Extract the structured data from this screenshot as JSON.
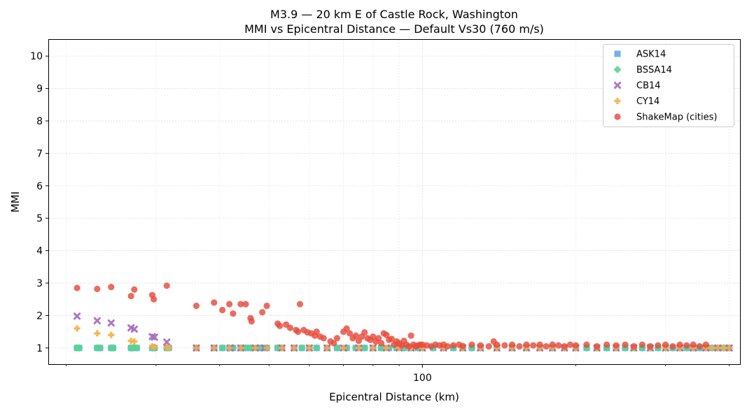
{
  "chart_data": {
    "type": "scatter",
    "title": "M3.9 — 20 km E of Castle Rock, Washington",
    "subtitle": "MMI vs Epicentral Distance — Default Vs30 (760 m/s)",
    "xlabel": "Epicentral Distance (km)",
    "ylabel": "MMI",
    "xscale": "log",
    "xlim": [
      18.5,
      420
    ],
    "ylim": [
      0.5,
      10.5
    ],
    "xticks": [
      100
    ],
    "xtick_labels": [
      "100"
    ],
    "yticks": [
      1,
      2,
      3,
      4,
      5,
      6,
      7,
      8,
      9,
      10
    ],
    "ytick_labels": [
      "1",
      "2",
      "3",
      "4",
      "5",
      "6",
      "7",
      "8",
      "9",
      "10"
    ],
    "grid": true,
    "legend_position": "top-right",
    "series": [
      {
        "name": "ASK14",
        "marker": "square",
        "color": "#5DADE2",
        "x": [
          21,
          21.2,
          23,
          23.3,
          24.5,
          24.7,
          26.8,
          27,
          27.5,
          29.5,
          29.8,
          31.5,
          31.8,
          36,
          39,
          40.5,
          41.8,
          42.5,
          44,
          45,
          46,
          47.5,
          48.5,
          49.5,
          52,
          53,
          56,
          58,
          60,
          62,
          65,
          68,
          71,
          74,
          77,
          80,
          83,
          86,
          89,
          92,
          95,
          98,
          100,
          105,
          110,
          115,
          120,
          125,
          130,
          140,
          150,
          160,
          170,
          180,
          190,
          200,
          210,
          220,
          230,
          240,
          250,
          260,
          270,
          280,
          290,
          300,
          310,
          320,
          330,
          340,
          350,
          360,
          370,
          380,
          390,
          400
        ],
        "y": [
          1,
          1,
          1,
          1,
          1,
          1,
          1,
          1,
          1,
          1,
          1,
          1,
          1,
          1,
          1,
          1,
          1,
          1,
          1,
          1,
          1,
          1,
          1,
          1,
          1,
          1,
          1,
          1,
          1,
          1,
          1,
          1,
          1,
          1,
          1,
          1,
          1,
          1,
          1,
          1,
          1,
          1,
          1,
          1,
          1,
          1,
          1,
          1,
          1,
          1,
          1,
          1,
          1,
          1,
          1,
          1,
          1,
          1,
          1,
          1,
          1,
          1,
          1,
          1,
          1,
          1,
          1,
          1,
          1,
          1,
          1,
          1,
          1,
          1,
          1,
          1
        ]
      },
      {
        "name": "BSSA14",
        "marker": "diamond",
        "color": "#58D68D",
        "x": [
          21,
          21.2,
          23,
          23.3,
          24.5,
          24.7,
          26.8,
          27,
          27.5,
          29.5,
          29.8,
          31.5,
          31.8,
          36,
          39,
          40.5,
          41.8,
          42.5,
          44,
          45,
          46,
          47.5,
          48.5,
          49.5,
          52,
          53,
          56,
          58,
          60,
          62,
          65,
          68,
          71,
          74,
          77,
          80,
          83,
          86,
          89,
          92,
          95,
          98,
          100,
          105,
          110,
          115,
          120,
          125,
          130,
          140,
          150,
          160,
          170,
          180,
          190,
          200,
          210,
          220,
          230,
          240,
          250,
          260,
          270,
          280,
          290,
          300,
          310,
          320,
          330,
          340,
          350,
          360,
          370,
          380,
          390,
          400
        ],
        "y": [
          1,
          1,
          1,
          1,
          1,
          1,
          1,
          1,
          1,
          1,
          1,
          1,
          1,
          1,
          1,
          1,
          1,
          1,
          1,
          1,
          1,
          1,
          1,
          1,
          1,
          1,
          1,
          1,
          1,
          1,
          1,
          1,
          1,
          1,
          1,
          1,
          1,
          1,
          1,
          1,
          1,
          1,
          1,
          1,
          1,
          1,
          1,
          1,
          1,
          1,
          1,
          1,
          1,
          1,
          1,
          1,
          1,
          1,
          1,
          1,
          1,
          1,
          1,
          1,
          1,
          1,
          1,
          1,
          1,
          1,
          1,
          1,
          1,
          1,
          1,
          1
        ]
      },
      {
        "name": "CB14",
        "marker": "x",
        "color": "#A569BD",
        "x": [
          21,
          23,
          24.5,
          26.8,
          27.2,
          29.5,
          29.8,
          31.5,
          36,
          39,
          42,
          44,
          47,
          49,
          53,
          56,
          60,
          65,
          70,
          75,
          80,
          85,
          90,
          95,
          100,
          110,
          120,
          130,
          140,
          150,
          160,
          170,
          180,
          190,
          200,
          220,
          240,
          260,
          280,
          300,
          320,
          340,
          360,
          380,
          400
        ],
        "y": [
          1.98,
          1.84,
          1.77,
          1.62,
          1.58,
          1.35,
          1.33,
          1.18,
          1,
          1,
          1,
          1,
          1,
          1,
          1,
          1,
          1,
          1,
          1,
          1,
          1,
          1,
          1,
          1,
          1,
          1,
          1,
          1,
          1,
          1,
          1,
          1,
          1,
          1,
          1,
          1,
          1,
          1,
          1,
          1,
          1,
          1,
          1,
          1,
          1
        ]
      },
      {
        "name": "CY14",
        "marker": "plus",
        "color": "#F5B041",
        "x": [
          21,
          23,
          24.5,
          26.8,
          27.2,
          29.5,
          29.8,
          31.5,
          31.8,
          36,
          39,
          41.8,
          44,
          47,
          49.5,
          53,
          56,
          60,
          65,
          70,
          75,
          80,
          85,
          90,
          95,
          100,
          110,
          120,
          130,
          140,
          150,
          160,
          170,
          180,
          190,
          200,
          220,
          240,
          260,
          280,
          300,
          320,
          340,
          360,
          370,
          380,
          390,
          400
        ],
        "y": [
          1.6,
          1.45,
          1.4,
          1.22,
          1.2,
          1.05,
          1.03,
          1.02,
          1,
          1,
          1,
          1,
          1,
          1,
          1,
          1,
          1,
          1,
          1,
          1,
          1,
          1,
          1,
          1,
          1,
          1,
          1,
          1,
          1,
          1,
          1,
          1,
          1,
          1,
          1,
          1,
          1,
          1,
          1,
          1,
          1,
          1,
          1,
          1,
          1,
          1,
          1,
          1
        ]
      },
      {
        "name": "ShakeMap (cities)",
        "marker": "circle",
        "color": "#E74C3C",
        "x": [
          21,
          23,
          24.5,
          26.8,
          27.2,
          29.5,
          29.7,
          31.5,
          36,
          39,
          40.5,
          41.8,
          42.5,
          44,
          45,
          46,
          46.2,
          48.5,
          49.5,
          52,
          52.5,
          54,
          55,
          56.5,
          57,
          57.5,
          58.5,
          59.5,
          60.5,
          61.5,
          62,
          63,
          64,
          66,
          67,
          68,
          70,
          71,
          72,
          73,
          74,
          75,
          76,
          77,
          78,
          79,
          80,
          81,
          82,
          83,
          84,
          85,
          86,
          87,
          88,
          89,
          90,
          91,
          92,
          93,
          94,
          95,
          96,
          97,
          98,
          99,
          100,
          102,
          104,
          106,
          108,
          110,
          112,
          115,
          118,
          120,
          125,
          130,
          135,
          138,
          140,
          145,
          150,
          155,
          160,
          165,
          170,
          175,
          180,
          185,
          190,
          195,
          200,
          210,
          220,
          230,
          240,
          250,
          260,
          270,
          280,
          290,
          300,
          310,
          320,
          330,
          340,
          350,
          360
        ],
        "y": [
          2.85,
          2.82,
          2.88,
          2.6,
          2.8,
          2.63,
          2.5,
          2.92,
          2.3,
          2.4,
          2.17,
          2.35,
          2.06,
          2.35,
          2.35,
          1.92,
          1.82,
          2.1,
          2.3,
          1.75,
          1.68,
          1.72,
          1.62,
          1.55,
          1.5,
          2.35,
          1.55,
          1.48,
          1.45,
          1.38,
          1.5,
          1.35,
          1.3,
          1.2,
          1.15,
          1.3,
          1.5,
          1.6,
          1.45,
          1.3,
          1.38,
          1.22,
          1.35,
          1.48,
          1.3,
          1.25,
          1.35,
          1.2,
          1.3,
          1.15,
          1.45,
          1.4,
          1.25,
          1.28,
          1.1,
          1.2,
          1.15,
          1.08,
          1.22,
          1.1,
          1.05,
          1.38,
          1.1,
          1.05,
          1.08,
          1.1,
          1.1,
          1.08,
          1.05,
          1.1,
          1.08,
          1.1,
          1.05,
          1.08,
          1.1,
          1.06,
          1.1,
          1.08,
          1.05,
          1.2,
          1.1,
          1.08,
          1.1,
          1.05,
          1.1,
          1.08,
          1.1,
          1.05,
          1.1,
          1.08,
          1.05,
          1.1,
          1.08,
          1.1,
          1.05,
          1.1,
          1.08,
          1.1,
          1.05,
          1.1,
          1.05,
          1.08,
          1.1,
          1.05,
          1.1,
          1.08,
          1.1,
          1.05,
          1.1
        ]
      }
    ]
  }
}
